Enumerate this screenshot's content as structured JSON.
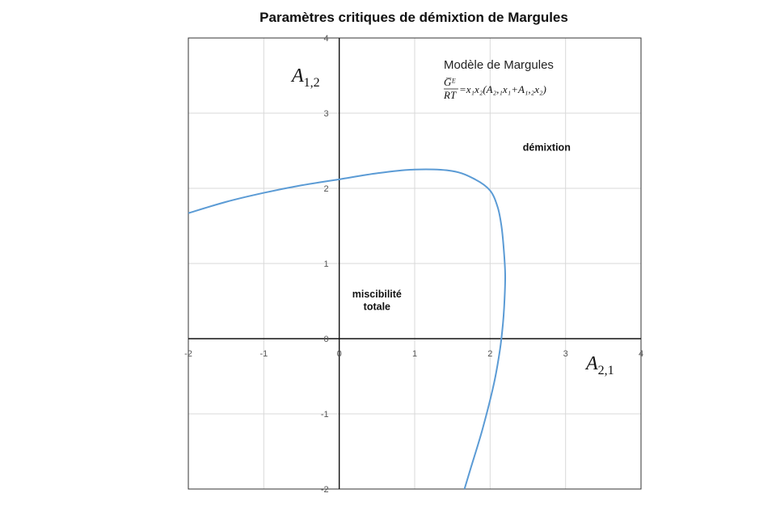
{
  "chart_data": {
    "type": "line",
    "title": "Paramètres critiques de démixtion de Margules",
    "xlabel": "A₂,₁",
    "ylabel": "A₁,₂",
    "xlim": [
      -2,
      4
    ],
    "ylim": [
      -2,
      4
    ],
    "xticks": [
      "-2",
      "-1",
      "0",
      "1",
      "2",
      "3",
      "4"
    ],
    "yticks": [
      "-2",
      "-1",
      "0",
      "1",
      "2",
      "3",
      "4"
    ],
    "grid": true,
    "legend": "none",
    "series": [
      {
        "color": "#5b9bd5",
        "x": [
          -2.0,
          -1.5,
          -1.0,
          -0.5,
          0.0,
          0.5,
          1.0,
          1.5,
          1.8,
          2.0,
          2.1,
          2.15,
          2.18,
          2.2,
          2.19,
          2.17,
          2.13,
          2.05,
          1.9,
          1.75,
          1.66
        ],
        "y": [
          1.67,
          1.82,
          1.94,
          2.04,
          2.12,
          2.2,
          2.25,
          2.23,
          2.12,
          1.97,
          1.75,
          1.5,
          1.2,
          0.85,
          0.5,
          0.2,
          -0.15,
          -0.6,
          -1.2,
          -1.7,
          -2.0
        ]
      }
    ],
    "annotations": [
      {
        "text": "démixtion",
        "x": 2.75,
        "y": 2.5
      },
      {
        "text": "miscibilité",
        "x": 0.5,
        "y": 0.55
      },
      {
        "text": "totale",
        "x": 0.5,
        "y": 0.38
      }
    ],
    "model": {
      "title": "Modèle de Margules",
      "equation": "=x₁x₂(A₂,₁x₁+A₁,₂x₂)",
      "numerator": "G̅ᴱ",
      "denominator": "RT"
    }
  }
}
